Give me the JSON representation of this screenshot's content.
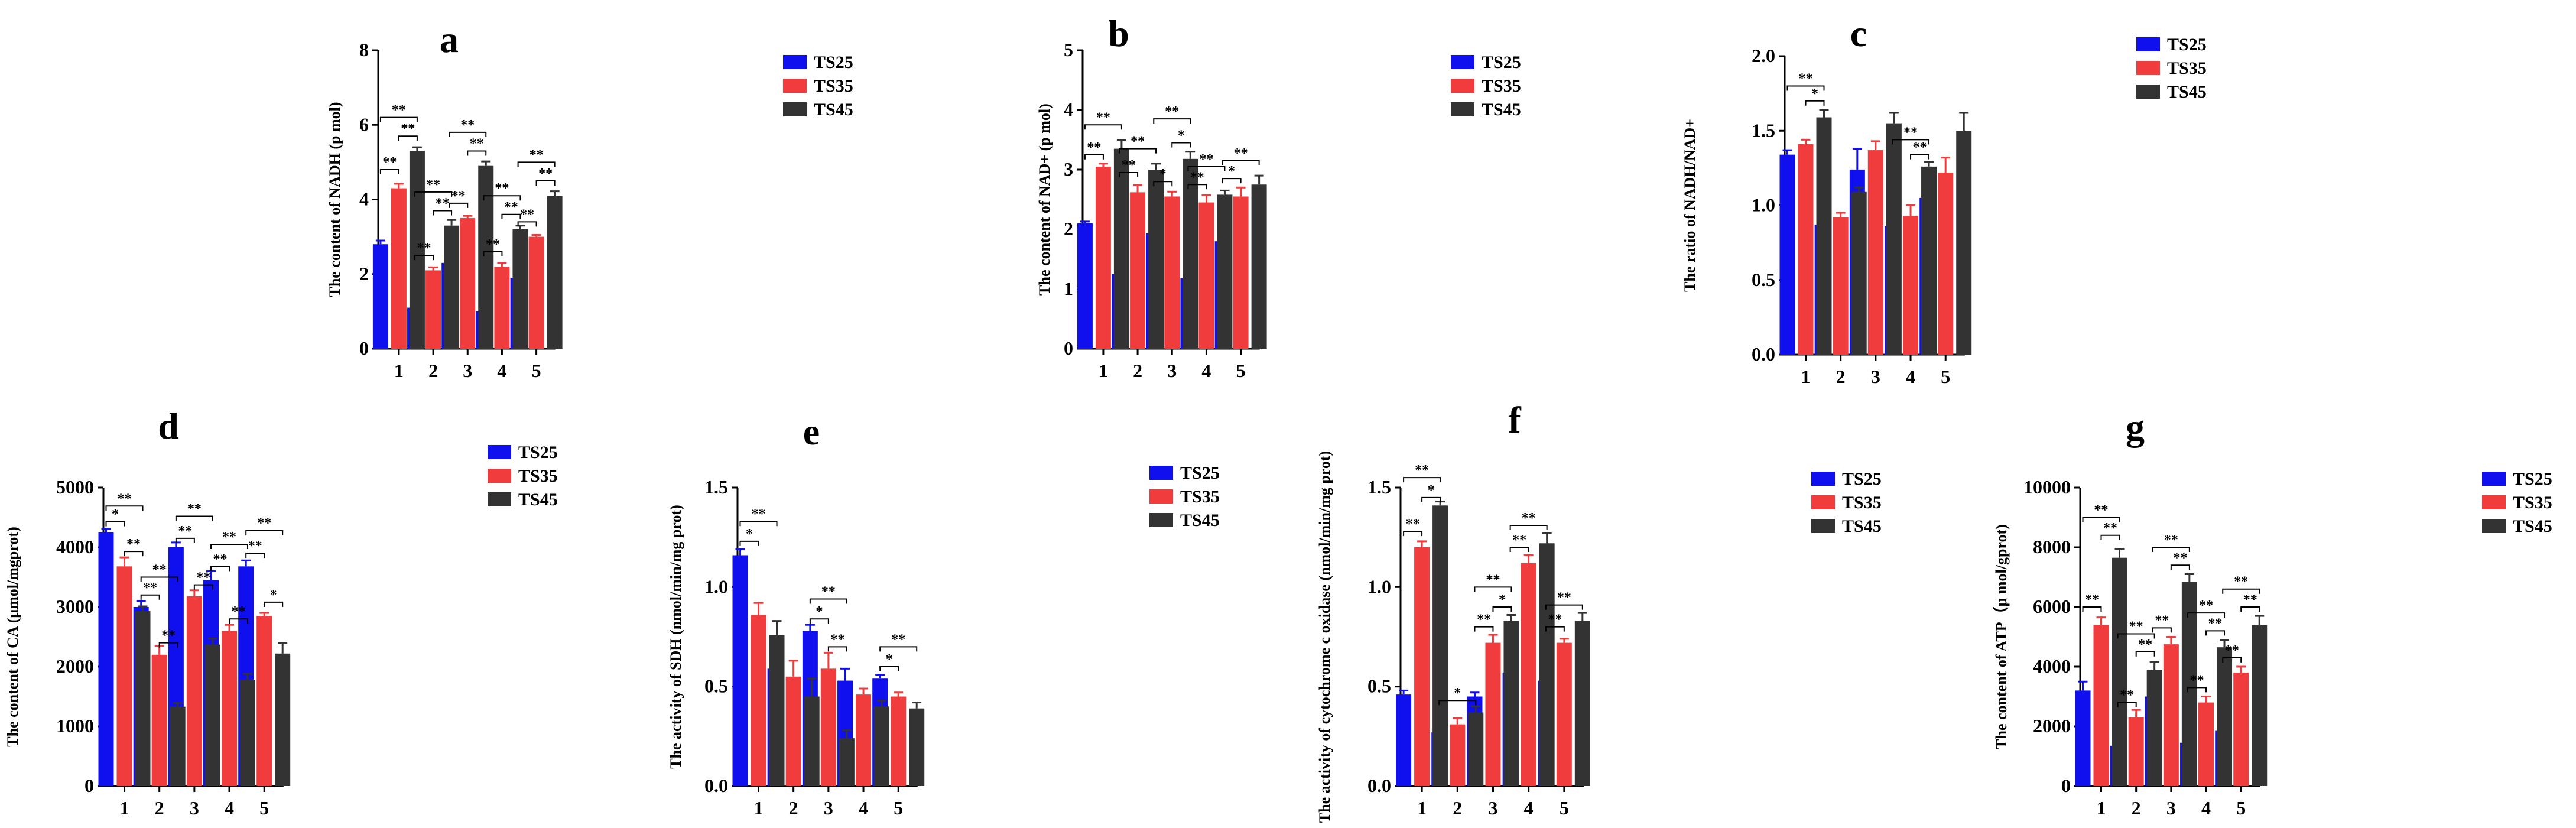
{
  "colors": {
    "TS25": "#1010ee",
    "TS35": "#f03c3c",
    "TS45": "#333333"
  },
  "chart_data": [
    {
      "panel": "a",
      "type": "bar",
      "ylabel": "The content of NADH (p mol)",
      "categories": [
        "1",
        "2",
        "3",
        "4",
        "5"
      ],
      "ylim": [
        0,
        8
      ],
      "yticks": [
        0,
        2,
        4,
        6,
        8
      ],
      "ytick_labels": [
        "0",
        "2",
        "4",
        "6",
        "8"
      ],
      "series": [
        {
          "name": "TS25",
          "values": [
            2.8,
            1.1,
            2.3,
            1.0,
            1.9
          ],
          "errors": [
            0.1,
            0.12,
            0.1,
            0.12,
            0.1
          ]
        },
        {
          "name": "TS35",
          "values": [
            4.3,
            2.1,
            3.5,
            2.2,
            3.0
          ],
          "errors": [
            0.12,
            0.08,
            0.06,
            0.1,
            0.05
          ]
        },
        {
          "name": "TS45",
          "values": [
            5.3,
            3.3,
            4.9,
            3.2,
            4.1
          ],
          "errors": [
            0.1,
            0.15,
            0.12,
            0.1,
            0.12
          ]
        }
      ],
      "annotations": [
        {
          "group": 0,
          "from": 0,
          "to": 1,
          "label": "**",
          "y": 4.8
        },
        {
          "group": 0,
          "from": 1,
          "to": 2,
          "label": "**",
          "y": 5.7
        },
        {
          "group": 0,
          "from": 0,
          "to": 2,
          "label": "**",
          "y": 6.2
        },
        {
          "group": 1,
          "from": 0,
          "to": 1,
          "label": "**",
          "y": 2.5
        },
        {
          "group": 1,
          "from": 1,
          "to": 2,
          "label": "**",
          "y": 3.7
        },
        {
          "group": 1,
          "from": 0,
          "to": 2,
          "label": "**",
          "y": 4.2
        },
        {
          "group": 2,
          "from": 0,
          "to": 1,
          "label": "**",
          "y": 3.9
        },
        {
          "group": 2,
          "from": 1,
          "to": 2,
          "label": "**",
          "y": 5.3
        },
        {
          "group": 2,
          "from": 0,
          "to": 2,
          "label": "**",
          "y": 5.8
        },
        {
          "group": 3,
          "from": 0,
          "to": 1,
          "label": "**",
          "y": 2.6
        },
        {
          "group": 3,
          "from": 1,
          "to": 2,
          "label": "**",
          "y": 3.6
        },
        {
          "group": 3,
          "from": 0,
          "to": 2,
          "label": "**",
          "y": 4.1
        },
        {
          "group": 4,
          "from": 0,
          "to": 1,
          "label": "**",
          "y": 3.4
        },
        {
          "group": 4,
          "from": 1,
          "to": 2,
          "label": "**",
          "y": 4.5
        },
        {
          "group": 4,
          "from": 0,
          "to": 2,
          "label": "**",
          "y": 5.0
        }
      ]
    },
    {
      "panel": "b",
      "type": "bar",
      "ylabel": "The content of NAD+ (p mol)",
      "categories": [
        "1",
        "2",
        "3",
        "4",
        "5"
      ],
      "ylim": [
        0,
        5
      ],
      "yticks": [
        0,
        1,
        2,
        3,
        4,
        5
      ],
      "ytick_labels": [
        "0",
        "1",
        "2",
        "3",
        "4",
        "5"
      ],
      "series": [
        {
          "name": "TS25",
          "values": [
            2.1,
            1.25,
            1.93,
            1.18,
            1.8
          ],
          "errors": [
            0.03,
            0.18,
            0.15,
            0.1,
            0.1
          ]
        },
        {
          "name": "TS35",
          "values": [
            3.05,
            2.62,
            2.55,
            2.45,
            2.55
          ],
          "errors": [
            0.05,
            0.12,
            0.08,
            0.12,
            0.15
          ]
        },
        {
          "name": "TS45",
          "values": [
            3.35,
            3.0,
            3.18,
            2.58,
            2.75
          ],
          "errors": [
            0.15,
            0.1,
            0.12,
            0.07,
            0.15
          ]
        }
      ],
      "annotations": [
        {
          "group": 0,
          "from": 0,
          "to": 1,
          "label": "**",
          "y": 3.25
        },
        {
          "group": 0,
          "from": 0,
          "to": 2,
          "label": "**",
          "y": 3.75
        },
        {
          "group": 1,
          "from": 0,
          "to": 1,
          "label": "**",
          "y": 2.95
        },
        {
          "group": 1,
          "from": 0,
          "to": 2,
          "label": "**",
          "y": 3.35
        },
        {
          "group": 2,
          "from": 0,
          "to": 1,
          "label": "*",
          "y": 2.8
        },
        {
          "group": 2,
          "from": 1,
          "to": 2,
          "label": "*",
          "y": 3.45
        },
        {
          "group": 2,
          "from": 0,
          "to": 2,
          "label": "**",
          "y": 3.85
        },
        {
          "group": 3,
          "from": 0,
          "to": 1,
          "label": "**",
          "y": 2.75
        },
        {
          "group": 3,
          "from": 0,
          "to": 2,
          "label": "**",
          "y": 3.05
        },
        {
          "group": 4,
          "from": 0,
          "to": 1,
          "label": "*",
          "y": 2.85
        },
        {
          "group": 4,
          "from": 0,
          "to": 2,
          "label": "**",
          "y": 3.15
        }
      ]
    },
    {
      "panel": "c",
      "type": "bar",
      "ylabel": "The ratio of NADH/NAD+",
      "categories": [
        "1",
        "2",
        "3",
        "4",
        "5"
      ],
      "ylim": [
        0,
        2.0
      ],
      "yticks": [
        0,
        0.5,
        1.0,
        1.5,
        2.0
      ],
      "ytick_labels": [
        "0.0",
        "0.5",
        "1.0",
        "1.5",
        "2.0"
      ],
      "series": [
        {
          "name": "TS25",
          "values": [
            1.34,
            0.87,
            1.24,
            0.86,
            1.05
          ],
          "errors": [
            0.03,
            0.02,
            0.14,
            0.06,
            0.03
          ]
        },
        {
          "name": "TS35",
          "values": [
            1.41,
            0.92,
            1.37,
            0.93,
            1.22
          ],
          "errors": [
            0.03,
            0.03,
            0.06,
            0.07,
            0.1
          ]
        },
        {
          "name": "TS45",
          "values": [
            1.59,
            1.09,
            1.55,
            1.26,
            1.5
          ],
          "errors": [
            0.05,
            0.03,
            0.07,
            0.03,
            0.12
          ]
        }
      ],
      "annotations": [
        {
          "group": 0,
          "from": 1,
          "to": 2,
          "label": "*",
          "y": 1.7
        },
        {
          "group": 0,
          "from": 0,
          "to": 2,
          "label": "**",
          "y": 1.8
        },
        {
          "group": 3,
          "from": 1,
          "to": 2,
          "label": "**",
          "y": 1.34
        },
        {
          "group": 3,
          "from": 0,
          "to": 2,
          "label": "**",
          "y": 1.44
        }
      ]
    },
    {
      "panel": "d",
      "type": "bar",
      "ylabel": "The content of CA (μmol/mgprot)",
      "categories": [
        "1",
        "2",
        "3",
        "4",
        "5"
      ],
      "ylim": [
        0,
        5000
      ],
      "yticks": [
        0,
        1000,
        2000,
        3000,
        4000,
        5000
      ],
      "ytick_labels": [
        "0",
        "1000",
        "2000",
        "3000",
        "4000",
        "5000"
      ],
      "series": [
        {
          "name": "TS25",
          "values": [
            4250,
            3000,
            4000,
            3450,
            3680
          ],
          "errors": [
            60,
            100,
            80,
            150,
            100
          ]
        },
        {
          "name": "TS35",
          "values": [
            3680,
            2200,
            3180,
            2600,
            2850
          ],
          "errors": [
            150,
            150,
            100,
            100,
            50
          ]
        },
        {
          "name": "TS45",
          "values": [
            2930,
            1330,
            2370,
            1780,
            2220
          ],
          "errors": [
            80,
            60,
            100,
            100,
            180
          ]
        }
      ],
      "annotations": [
        {
          "group": 0,
          "from": 0,
          "to": 1,
          "label": "*",
          "y": 4430
        },
        {
          "group": 0,
          "from": 1,
          "to": 2,
          "label": "**",
          "y": 3930
        },
        {
          "group": 0,
          "from": 0,
          "to": 2,
          "label": "**",
          "y": 4690
        },
        {
          "group": 1,
          "from": 0,
          "to": 1,
          "label": "**",
          "y": 3200
        },
        {
          "group": 1,
          "from": 1,
          "to": 2,
          "label": "**",
          "y": 2400
        },
        {
          "group": 1,
          "from": 0,
          "to": 2,
          "label": "**",
          "y": 3500
        },
        {
          "group": 2,
          "from": 0,
          "to": 1,
          "label": "**",
          "y": 4150
        },
        {
          "group": 2,
          "from": 1,
          "to": 2,
          "label": "**",
          "y": 3370
        },
        {
          "group": 2,
          "from": 0,
          "to": 2,
          "label": "**",
          "y": 4520
        },
        {
          "group": 3,
          "from": 0,
          "to": 1,
          "label": "**",
          "y": 3680
        },
        {
          "group": 3,
          "from": 1,
          "to": 2,
          "label": "**",
          "y": 2800
        },
        {
          "group": 3,
          "from": 0,
          "to": 2,
          "label": "**",
          "y": 4050
        },
        {
          "group": 4,
          "from": 0,
          "to": 1,
          "label": "**",
          "y": 3900
        },
        {
          "group": 4,
          "from": 1,
          "to": 2,
          "label": "*",
          "y": 3080
        },
        {
          "group": 4,
          "from": 0,
          "to": 2,
          "label": "**",
          "y": 4280
        }
      ]
    },
    {
      "panel": "e",
      "type": "bar",
      "ylabel": "The activity of SDH (nmol/min/mg prot)",
      "categories": [
        "1",
        "2",
        "3",
        "4",
        "5"
      ],
      "ylim": [
        0,
        1.5
      ],
      "yticks": [
        0,
        0.5,
        1.0,
        1.5
      ],
      "ytick_labels": [
        "0.0",
        "0.5",
        "1.0",
        "1.5"
      ],
      "series": [
        {
          "name": "TS25",
          "values": [
            1.16,
            0.59,
            0.78,
            0.53,
            0.54
          ],
          "errors": [
            0.03,
            0.11,
            0.03,
            0.06,
            0.02
          ]
        },
        {
          "name": "TS35",
          "values": [
            0.86,
            0.55,
            0.59,
            0.46,
            0.45
          ],
          "errors": [
            0.06,
            0.08,
            0.08,
            0.03,
            0.02
          ]
        },
        {
          "name": "TS45",
          "values": [
            0.76,
            0.45,
            0.24,
            0.4,
            0.39
          ],
          "errors": [
            0.07,
            0.09,
            0.04,
            0.03,
            0.03
          ]
        }
      ],
      "annotations": [
        {
          "group": 0,
          "from": 0,
          "to": 1,
          "label": "*",
          "y": 1.23
        },
        {
          "group": 0,
          "from": 0,
          "to": 2,
          "label": "**",
          "y": 1.33
        },
        {
          "group": 2,
          "from": 0,
          "to": 1,
          "label": "*",
          "y": 0.84
        },
        {
          "group": 2,
          "from": 1,
          "to": 2,
          "label": "**",
          "y": 0.7
        },
        {
          "group": 2,
          "from": 0,
          "to": 2,
          "label": "**",
          "y": 0.94
        },
        {
          "group": 4,
          "from": 0,
          "to": 1,
          "label": "*",
          "y": 0.6
        },
        {
          "group": 4,
          "from": 0,
          "to": 2,
          "label": "**",
          "y": 0.7
        }
      ]
    },
    {
      "panel": "f",
      "type": "bar",
      "ylabel": "The activity of cytochrome c oxidase (nmol/min/mg prot)",
      "categories": [
        "1",
        "2",
        "3",
        "4",
        "5"
      ],
      "ylim": [
        0,
        1.5
      ],
      "yticks": [
        0,
        0.5,
        1.0,
        1.5
      ],
      "ytick_labels": [
        "0.0",
        "0.5",
        "1.0",
        "1.5"
      ],
      "series": [
        {
          "name": "TS25",
          "values": [
            0.46,
            0.27,
            0.45,
            0.57,
            0.53
          ],
          "errors": [
            0.02,
            0.02,
            0.02,
            0.08,
            0.05
          ]
        },
        {
          "name": "TS35",
          "values": [
            1.2,
            0.31,
            0.72,
            1.12,
            0.72
          ],
          "errors": [
            0.03,
            0.03,
            0.04,
            0.04,
            0.02
          ]
        },
        {
          "name": "TS45",
          "values": [
            1.41,
            0.37,
            0.83,
            1.22,
            0.83
          ],
          "errors": [
            0.02,
            0.03,
            0.03,
            0.05,
            0.04
          ]
        }
      ],
      "annotations": [
        {
          "group": 0,
          "from": 0,
          "to": 1,
          "label": "**",
          "y": 1.28
        },
        {
          "group": 0,
          "from": 1,
          "to": 2,
          "label": "*",
          "y": 1.45
        },
        {
          "group": 0,
          "from": 0,
          "to": 2,
          "label": "**",
          "y": 1.55
        },
        {
          "group": 1,
          "from": 0,
          "to": 2,
          "label": "*",
          "y": 0.43
        },
        {
          "group": 2,
          "from": 0,
          "to": 1,
          "label": "**",
          "y": 0.8
        },
        {
          "group": 2,
          "from": 1,
          "to": 2,
          "label": "*",
          "y": 0.9
        },
        {
          "group": 2,
          "from": 0,
          "to": 2,
          "label": "**",
          "y": 1.0
        },
        {
          "group": 3,
          "from": 0,
          "to": 1,
          "label": "**",
          "y": 1.2
        },
        {
          "group": 3,
          "from": 0,
          "to": 2,
          "label": "**",
          "y": 1.31
        },
        {
          "group": 4,
          "from": 0,
          "to": 1,
          "label": "**",
          "y": 0.8
        },
        {
          "group": 4,
          "from": 0,
          "to": 2,
          "label": "**",
          "y": 0.91
        }
      ]
    },
    {
      "panel": "g",
      "type": "bar",
      "ylabel": "The content of ATP（μ mol/gprot)",
      "categories": [
        "1",
        "2",
        "3",
        "4",
        "5"
      ],
      "ylim": [
        0,
        10000
      ],
      "yticks": [
        0,
        2000,
        4000,
        6000,
        8000,
        10000
      ],
      "ytick_labels": [
        "0",
        "2000",
        "4000",
        "6000",
        "8000",
        "10000"
      ],
      "series": [
        {
          "name": "TS25",
          "values": [
            3200,
            1350,
            3000,
            1450,
            1850
          ],
          "errors": [
            300,
            250,
            250,
            250,
            300
          ]
        },
        {
          "name": "TS35",
          "values": [
            5400,
            2300,
            4750,
            2800,
            3800
          ],
          "errors": [
            250,
            250,
            250,
            200,
            200
          ]
        },
        {
          "name": "TS45",
          "values": [
            7650,
            3900,
            6850,
            4650,
            5400
          ],
          "errors": [
            300,
            250,
            250,
            250,
            300
          ]
        }
      ],
      "annotations": [
        {
          "group": 0,
          "from": 0,
          "to": 1,
          "label": "**",
          "y": 6000
        },
        {
          "group": 0,
          "from": 1,
          "to": 2,
          "label": "**",
          "y": 8400
        },
        {
          "group": 0,
          "from": 0,
          "to": 2,
          "label": "**",
          "y": 9000
        },
        {
          "group": 1,
          "from": 0,
          "to": 1,
          "label": "**",
          "y": 2800
        },
        {
          "group": 1,
          "from": 1,
          "to": 2,
          "label": "**",
          "y": 4500
        },
        {
          "group": 1,
          "from": 0,
          "to": 2,
          "label": "**",
          "y": 5100
        },
        {
          "group": 2,
          "from": 0,
          "to": 1,
          "label": "**",
          "y": 5300
        },
        {
          "group": 2,
          "from": 1,
          "to": 2,
          "label": "**",
          "y": 7400
        },
        {
          "group": 2,
          "from": 0,
          "to": 2,
          "label": "**",
          "y": 8000
        },
        {
          "group": 3,
          "from": 0,
          "to": 1,
          "label": "**",
          "y": 3300
        },
        {
          "group": 3,
          "from": 1,
          "to": 2,
          "label": "**",
          "y": 5200
        },
        {
          "group": 3,
          "from": 0,
          "to": 2,
          "label": "**",
          "y": 5800
        },
        {
          "group": 4,
          "from": 0,
          "to": 1,
          "label": "**",
          "y": 4300
        },
        {
          "group": 4,
          "from": 1,
          "to": 2,
          "label": "**",
          "y": 6000
        },
        {
          "group": 4,
          "from": 0,
          "to": 2,
          "label": "**",
          "y": 6600
        }
      ]
    }
  ]
}
